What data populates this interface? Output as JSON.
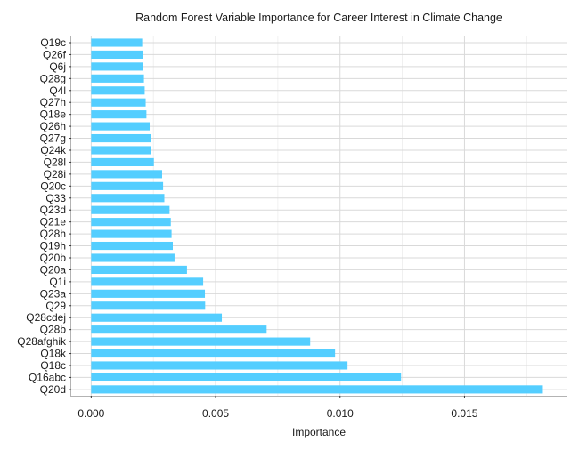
{
  "chart_data": {
    "type": "bar",
    "orientation": "horizontal",
    "title": "Random Forest Variable Importance for Career Interest in Climate Change",
    "xlabel": "Importance",
    "ylabel": "",
    "xlim": [
      -0.0008,
      0.0191
    ],
    "x_ticks": [
      {
        "value": 0.0,
        "label": "0.000"
      },
      {
        "value": 0.005,
        "label": "0.005"
      },
      {
        "value": 0.01,
        "label": "0.010"
      },
      {
        "value": 0.015,
        "label": "0.015"
      }
    ],
    "grid": true,
    "legend": "none",
    "bar_color": "#54CEFF",
    "categories": [
      "Q19c",
      "Q26f",
      "Q6j",
      "Q28g",
      "Q4l",
      "Q27h",
      "Q18e",
      "Q26h",
      "Q27g",
      "Q24k",
      "Q28l",
      "Q28i",
      "Q20c",
      "Q33",
      "Q23d",
      "Q21e",
      "Q28h",
      "Q19h",
      "Q20b",
      "Q20a",
      "Q1i",
      "Q23a",
      "Q29",
      "Q28cdej",
      "Q28b",
      "Q28afghik",
      "Q18k",
      "Q18c",
      "Q16abc",
      "Q20d"
    ],
    "values": [
      0.00205,
      0.00207,
      0.00209,
      0.00212,
      0.00215,
      0.00219,
      0.00222,
      0.00235,
      0.00239,
      0.00242,
      0.00252,
      0.00285,
      0.00289,
      0.00294,
      0.00315,
      0.0032,
      0.00323,
      0.00328,
      0.00335,
      0.00385,
      0.0045,
      0.00457,
      0.00458,
      0.00525,
      0.00705,
      0.0088,
      0.0098,
      0.0103,
      0.01245,
      0.01815
    ]
  }
}
